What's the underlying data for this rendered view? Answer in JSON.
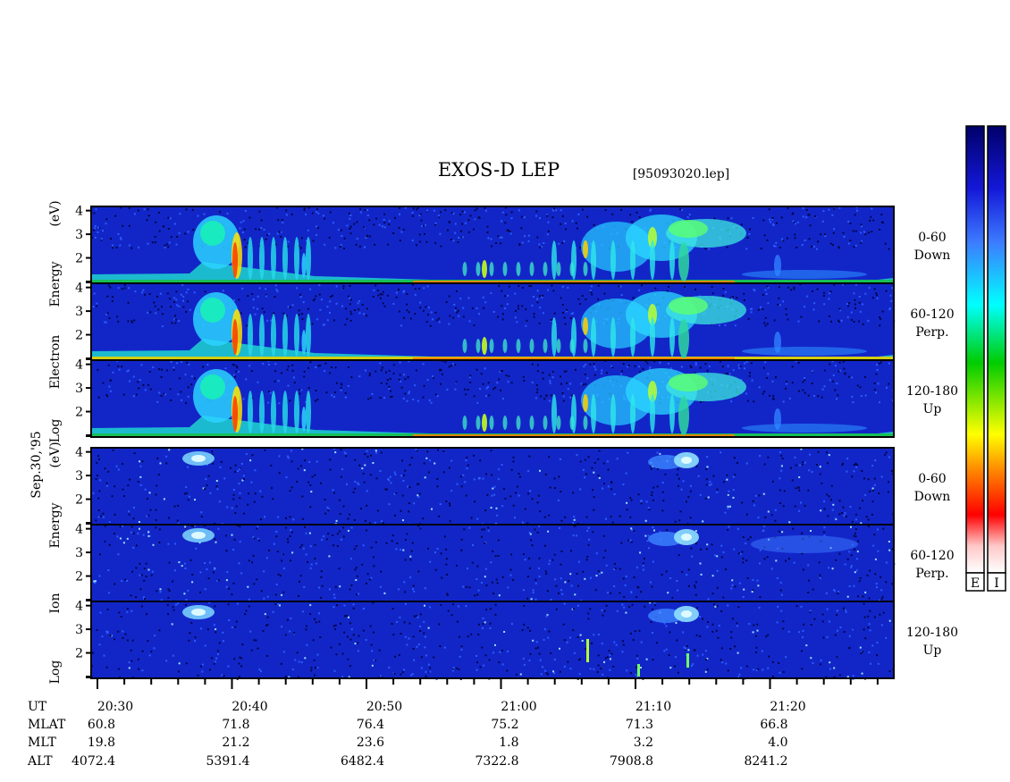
{
  "title": "EXOS-D LEP",
  "filename": "[95093020.lep]",
  "date_label": "Sep.30,'95",
  "chart_data": {
    "type": "heatmap",
    "x_axis": {
      "ticks": [
        "20:30",
        "20:40",
        "20:50",
        "21:00",
        "21:10",
        "21:20"
      ],
      "minor_tick_minutes": 2,
      "range_minutes": [
        0,
        59
      ]
    },
    "y_axis": {
      "ticks": [
        "1",
        "2",
        "3",
        "4"
      ],
      "range": [
        1,
        4.1
      ]
    },
    "groups": [
      {
        "key": "electron",
        "label_lines": [
          "Log",
          "Electron",
          "Energy",
          "(eV)"
        ],
        "panels": [
          {
            "label_lines": [
              "0-60",
              "Down"
            ]
          },
          {
            "label_lines": [
              "60-120",
              "Perp."
            ]
          },
          {
            "label_lines": [
              "120-180",
              "Up"
            ]
          }
        ]
      },
      {
        "key": "ion",
        "label_lines": [
          "Log",
          "Ion",
          "Energy",
          "(eV)"
        ],
        "panels": [
          {
            "label_lines": [
              "0-60",
              "Down"
            ]
          },
          {
            "label_lines": [
              "60-120",
              "Perp."
            ]
          },
          {
            "label_lines": [
              "120-180",
              "Up"
            ]
          }
        ]
      }
    ],
    "orbit_table": [
      {
        "label": "UT",
        "values": [
          "20:30",
          "20:40",
          "20:50",
          "21:00",
          "21:10",
          "21:20"
        ]
      },
      {
        "label": "MLAT",
        "values": [
          "60.8",
          "71.8",
          "76.4",
          "75.2",
          "71.3",
          "66.8"
        ]
      },
      {
        "label": "MLT",
        "values": [
          "19.8",
          "21.2",
          "23.6",
          "1.8",
          "3.2",
          "4.0"
        ]
      },
      {
        "label": "ALT",
        "values": [
          "4072.4",
          "5391.4",
          "6482.4",
          "7322.8",
          "7908.8",
          "8241.2"
        ]
      }
    ],
    "colorbars": [
      {
        "label": "E"
      },
      {
        "label": "I"
      }
    ],
    "colormap": [
      "#ffffff",
      "#ff0000",
      "#ff8800",
      "#ffff00",
      "#00cc00",
      "#00ffff",
      "#0044ff",
      "#000080"
    ]
  }
}
